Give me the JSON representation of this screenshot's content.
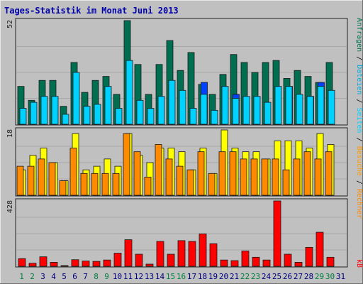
{
  "title": "Tages-Statistik im Monat Juni 2013",
  "colors": {
    "background": "#c0c0c0",
    "title": "#0000aa",
    "anfragen": "#006e50",
    "dateien": "#00d2ff",
    "seiten": "#0040ff",
    "besuche": "#ffff00",
    "rechner": "#ff8a00",
    "kb": "#ff0000",
    "weekend_label": "#008040",
    "weekday_label": "#000080"
  },
  "side_labels": {
    "top": [
      {
        "text": "Anfragen",
        "color": "#006e50"
      },
      {
        "text": " / ",
        "color": "#000000"
      },
      {
        "text": "Dateien",
        "color": "#00aadd"
      },
      {
        "text": " / ",
        "color": "#000000"
      },
      {
        "text": "Seiten",
        "color": "#00d2ff"
      },
      {
        "text": " / ",
        "color": "#000000"
      },
      {
        "text": "Besuche",
        "color": "#ff9900"
      },
      {
        "text": " / ",
        "color": "#000000"
      },
      {
        "text": "Rechner",
        "color": "#ff8a00"
      }
    ],
    "bottom": [
      {
        "text": "kB",
        "color": "#ff0000"
      }
    ]
  },
  "chart_data": [
    {
      "type": "bar",
      "name": "panel-requests",
      "axis_max_label": "52",
      "ylim": [
        0,
        52
      ],
      "categories": [
        "1",
        "2",
        "3",
        "4",
        "5",
        "6",
        "7",
        "8",
        "9",
        "10",
        "11",
        "12",
        "13",
        "14",
        "15",
        "16",
        "17",
        "18",
        "19",
        "20",
        "21",
        "22",
        "23",
        "24",
        "25",
        "26",
        "27",
        "28",
        "29",
        "30",
        "31"
      ],
      "series": [
        {
          "name": "Anfragen",
          "color": "#006e50",
          "values": [
            19,
            12,
            22,
            22,
            9,
            31,
            16,
            22,
            24,
            15,
            52,
            30,
            15,
            30,
            42,
            27,
            36,
            20,
            15,
            25,
            35,
            31,
            26,
            31,
            32,
            23,
            27,
            24,
            21,
            31,
            0
          ]
        },
        {
          "name": "Dateien",
          "color": "#00d2ff",
          "values": [
            8,
            11,
            14,
            14,
            5,
            26,
            9,
            10,
            19,
            8,
            32,
            12,
            8,
            14,
            22,
            17,
            8,
            15,
            7,
            19,
            13,
            14,
            14,
            11,
            19,
            19,
            15,
            14,
            19,
            17,
            0
          ]
        },
        {
          "name": "Seiten",
          "color": "#0040ff",
          "values": [
            0,
            0,
            0,
            0,
            0,
            0,
            0,
            0,
            0,
            0,
            0,
            0,
            0,
            0,
            0,
            0,
            0,
            21,
            0,
            0,
            15,
            0,
            0,
            0,
            0,
            19,
            0,
            14,
            21,
            0,
            0
          ]
        }
      ]
    },
    {
      "type": "bar",
      "name": "panel-visits",
      "axis_max_label": "18",
      "ylim": [
        0,
        18
      ],
      "categories": [
        "1",
        "2",
        "3",
        "4",
        "5",
        "6",
        "7",
        "8",
        "9",
        "10",
        "11",
        "12",
        "13",
        "14",
        "15",
        "16",
        "17",
        "18",
        "19",
        "20",
        "21",
        "22",
        "23",
        "24",
        "25",
        "26",
        "27",
        "28",
        "29",
        "30",
        "31"
      ],
      "series": [
        {
          "name": "Besuche",
          "color": "#ffff00",
          "values": [
            7,
            11,
            13,
            9,
            4,
            17,
            7,
            8,
            10,
            8,
            17,
            11,
            9,
            13,
            13,
            12,
            7,
            13,
            6,
            18,
            13,
            12,
            12,
            10,
            15,
            15,
            15,
            13,
            17,
            14,
            0
          ]
        },
        {
          "name": "Rechner",
          "color": "#ff8a00",
          "values": [
            8,
            8,
            10,
            9,
            4,
            13,
            6,
            6,
            6,
            6,
            17,
            12,
            5,
            14,
            10,
            8,
            7,
            12,
            6,
            12,
            12,
            10,
            10,
            10,
            10,
            7,
            10,
            12,
            10,
            12,
            0
          ]
        }
      ]
    },
    {
      "type": "bar",
      "name": "panel-kb",
      "axis_max_label": "428",
      "ylim": [
        0,
        428
      ],
      "categories": [
        "1",
        "2",
        "3",
        "4",
        "5",
        "6",
        "7",
        "8",
        "9",
        "10",
        "11",
        "12",
        "13",
        "14",
        "15",
        "16",
        "17",
        "18",
        "19",
        "20",
        "21",
        "22",
        "23",
        "24",
        "25",
        "26",
        "27",
        "28",
        "29",
        "30",
        "31"
      ],
      "series": [
        {
          "name": "kB",
          "color": "#ff0000",
          "values": [
            50,
            20,
            62,
            26,
            4,
            43,
            34,
            32,
            41,
            86,
            174,
            79,
            14,
            163,
            79,
            168,
            163,
            212,
            148,
            41,
            37,
            100,
            59,
            41,
            428,
            79,
            26,
            124,
            223,
            59,
            0
          ]
        }
      ]
    }
  ],
  "days": [
    {
      "label": "1",
      "weekend": true
    },
    {
      "label": "2",
      "weekend": true
    },
    {
      "label": "3",
      "weekend": false
    },
    {
      "label": "4",
      "weekend": false
    },
    {
      "label": "5",
      "weekend": false
    },
    {
      "label": "6",
      "weekend": false
    },
    {
      "label": "7",
      "weekend": false
    },
    {
      "label": "8",
      "weekend": true
    },
    {
      "label": "9",
      "weekend": true
    },
    {
      "label": "10",
      "weekend": false
    },
    {
      "label": "11",
      "weekend": false
    },
    {
      "label": "12",
      "weekend": false
    },
    {
      "label": "13",
      "weekend": false
    },
    {
      "label": "14",
      "weekend": false
    },
    {
      "label": "15",
      "weekend": true
    },
    {
      "label": "16",
      "weekend": true
    },
    {
      "label": "17",
      "weekend": false
    },
    {
      "label": "18",
      "weekend": false
    },
    {
      "label": "19",
      "weekend": false
    },
    {
      "label": "20",
      "weekend": false
    },
    {
      "label": "21",
      "weekend": false
    },
    {
      "label": "22",
      "weekend": true
    },
    {
      "label": "23",
      "weekend": true
    },
    {
      "label": "24",
      "weekend": false
    },
    {
      "label": "25",
      "weekend": false
    },
    {
      "label": "26",
      "weekend": false
    },
    {
      "label": "27",
      "weekend": false
    },
    {
      "label": "28",
      "weekend": false
    },
    {
      "label": "29",
      "weekend": true
    },
    {
      "label": "30",
      "weekend": true
    },
    {
      "label": "31",
      "weekend": false
    }
  ]
}
